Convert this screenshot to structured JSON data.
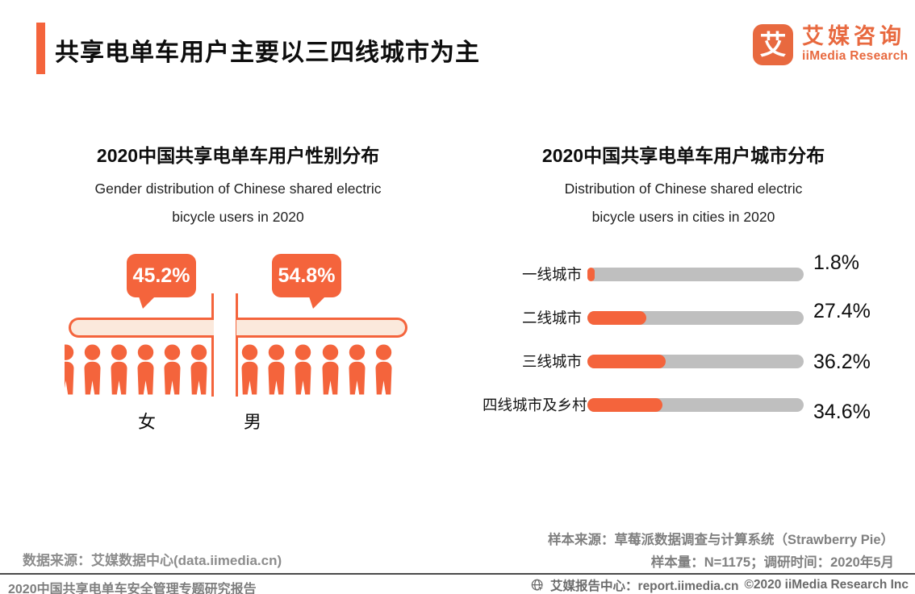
{
  "header": {
    "title": "共享电单车用户主要以三四线城市为主",
    "logo": {
      "icon_char": "艾",
      "brand_cn": "艾媒咨询",
      "brand_en": "iiMedia Research"
    }
  },
  "gender_chart": {
    "title": "2020中国共享电单车用户性别分布",
    "subtitle_line1": "Gender distribution of Chinese shared electric",
    "subtitle_line2": "bicycle users in 2020",
    "female": {
      "label": "女",
      "value": "45.2%",
      "icon_count": 6
    },
    "male": {
      "label": "男",
      "value": "54.8%",
      "icon_count": 6
    }
  },
  "city_chart": {
    "title": "2020中国共享电单车用户城市分布",
    "subtitle_line1": "Distribution of Chinese shared  electric",
    "subtitle_line2": "bicycle users in cities in 2020",
    "rows": [
      {
        "label": "一线城市",
        "value": "1.8%",
        "percent": 1.8
      },
      {
        "label": "二线城市",
        "value": "27.4%",
        "percent": 27.4
      },
      {
        "label": "三线城市",
        "value": "36.2%",
        "percent": 36.2
      },
      {
        "label": "四线城市及乡村",
        "value": "34.6%",
        "percent": 34.6
      }
    ]
  },
  "chart_data": [
    {
      "type": "bar",
      "title": "2020中国共享电单车用户性别分布",
      "subtitle": "Gender distribution of Chinese shared electric bicycle users in 2020",
      "categories": [
        "女",
        "男"
      ],
      "values": [
        45.2,
        54.8
      ],
      "unit": "%",
      "style": "pictogram of person icons with orange callout bubbles, female left / male right"
    },
    {
      "type": "bar",
      "title": "2020中国共享电单车用户城市分布",
      "subtitle": "Distribution of Chinese shared electric bicycle users in cities in 2020",
      "categories": [
        "一线城市",
        "二线城市",
        "三线城市",
        "四线城市及乡村"
      ],
      "values": [
        1.8,
        27.4,
        36.2,
        34.6
      ],
      "unit": "%",
      "orientation": "horizontal",
      "xlim": [
        0,
        100
      ],
      "grid": false,
      "value_labels": "right of each bar"
    }
  ],
  "sources": {
    "data_source": "数据来源：艾媒数据中心(data.iimedia.cn)",
    "sample_source": "样本来源：草莓派数据调查与计算系统（Strawberry Pie）",
    "sample_info": "样本量：N=1175；调研时间：2020年5月"
  },
  "footer": {
    "report_title": "2020中国共享电单车安全管理专题研究报告",
    "report_center": "艾媒报告中心：report.iimedia.cn",
    "copyright": "©2020  iiMedia Research Inc"
  },
  "colors": {
    "accent": "#F4643C",
    "logo_orange": "#E8693F",
    "capsule_fill": "#FBE9DC",
    "track_gray": "#BFBFBF"
  }
}
